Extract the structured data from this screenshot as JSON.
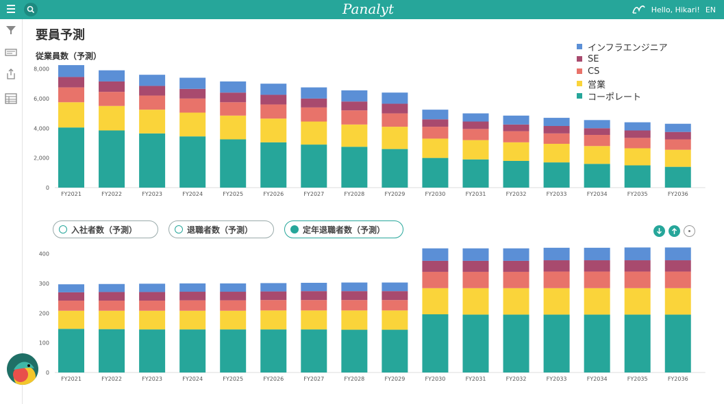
{
  "header": {
    "logo": "Panalyt",
    "greeting": "Hello, Hikari!",
    "language": "EN"
  },
  "page": {
    "title": "要員予測",
    "chart_title": "従業員数（予測）"
  },
  "filters": [
    {
      "label": "入社者数（予測）",
      "active": false
    },
    {
      "label": "退職者数（予測）",
      "active": false
    },
    {
      "label": "定年退職者数（予測）",
      "active": true
    }
  ],
  "colors": {
    "infra": "#5b8fd6",
    "se": "#a84a6e",
    "cs": "#e8736a",
    "sales": "#fad43a",
    "corporate": "#26a69a",
    "accent": "#26a69a"
  },
  "legend": [
    {
      "label": "インフラエンジニア",
      "color": "#5b8fd6"
    },
    {
      "label": "SE",
      "color": "#a84a6e"
    },
    {
      "label": "CS",
      "color": "#e8736a"
    },
    {
      "label": "営業",
      "color": "#fad43a"
    },
    {
      "label": "コーポレート",
      "color": "#26a69a"
    }
  ],
  "chart_data": [
    {
      "type": "bar",
      "stacked": true,
      "title": "従業員数（予測）",
      "categories": [
        "FY2021",
        "FY2022",
        "FY2023",
        "FY2024",
        "FY2025",
        "FY2026",
        "FY2027",
        "FY2028",
        "FY2029",
        "FY2030",
        "FY2031",
        "FY2032",
        "FY2033",
        "FY2034",
        "FY2035",
        "FY2036"
      ],
      "yticks": [
        "0",
        "2,000",
        "4,000",
        "6,000",
        "8,000"
      ],
      "ylim": [
        0,
        8300
      ],
      "series": [
        {
          "name": "コーポレート",
          "color": "#26a69a",
          "values": [
            4050,
            3850,
            3650,
            3450,
            3250,
            3050,
            2900,
            2750,
            2600,
            2000,
            1900,
            1800,
            1700,
            1600,
            1500,
            1400
          ]
        },
        {
          "name": "営業",
          "color": "#fad43a",
          "values": [
            1700,
            1650,
            1600,
            1600,
            1600,
            1600,
            1550,
            1500,
            1500,
            1300,
            1300,
            1250,
            1250,
            1200,
            1150,
            1150
          ]
        },
        {
          "name": "CS",
          "color": "#e8736a",
          "values": [
            1000,
            950,
            950,
            950,
            900,
            950,
            950,
            950,
            900,
            800,
            750,
            750,
            700,
            750,
            700,
            700
          ]
        },
        {
          "name": "SE",
          "color": "#a84a6e",
          "values": [
            700,
            700,
            650,
            650,
            650,
            650,
            600,
            600,
            650,
            500,
            500,
            450,
            500,
            450,
            500,
            500
          ]
        },
        {
          "name": "インフラエンジニア",
          "color": "#5b8fd6",
          "values": [
            800,
            750,
            750,
            750,
            750,
            750,
            750,
            750,
            750,
            650,
            550,
            600,
            550,
            550,
            550,
            550
          ]
        }
      ]
    },
    {
      "type": "bar",
      "stacked": true,
      "title": "定年退職者数（予測）",
      "categories": [
        "FY2021",
        "FY2022",
        "FY2023",
        "FY2024",
        "FY2025",
        "FY2026",
        "FY2027",
        "FY2028",
        "FY2029",
        "FY2030",
        "FY2031",
        "FY2032",
        "FY2033",
        "FY2034",
        "FY2035",
        "FY2036"
      ],
      "yticks": [
        "0",
        "100",
        "200",
        "300",
        "400"
      ],
      "ylim": [
        0,
        415
      ],
      "series": [
        {
          "name": "コーポレート",
          "color": "#26a69a",
          "values": [
            147,
            146,
            145,
            145,
            145,
            145,
            145,
            144,
            144,
            196,
            195,
            195,
            195,
            195,
            195,
            195
          ]
        },
        {
          "name": "営業",
          "color": "#fad43a",
          "values": [
            61,
            62,
            63,
            63,
            63,
            64,
            64,
            65,
            65,
            88,
            89,
            89,
            89,
            89,
            89,
            89
          ]
        },
        {
          "name": "CS",
          "color": "#e8736a",
          "values": [
            34,
            34,
            34,
            35,
            35,
            35,
            35,
            35,
            35,
            55,
            55,
            55,
            56,
            56,
            56,
            56
          ]
        },
        {
          "name": "SE",
          "color": "#a84a6e",
          "values": [
            28,
            29,
            29,
            29,
            29,
            29,
            30,
            30,
            30,
            37,
            37,
            37,
            38,
            38,
            38,
            38
          ]
        },
        {
          "name": "インフラエンジニア",
          "color": "#5b8fd6",
          "values": [
            27,
            27,
            28,
            28,
            28,
            28,
            28,
            29,
            29,
            42,
            42,
            42,
            42,
            42,
            43,
            43
          ]
        }
      ]
    }
  ]
}
